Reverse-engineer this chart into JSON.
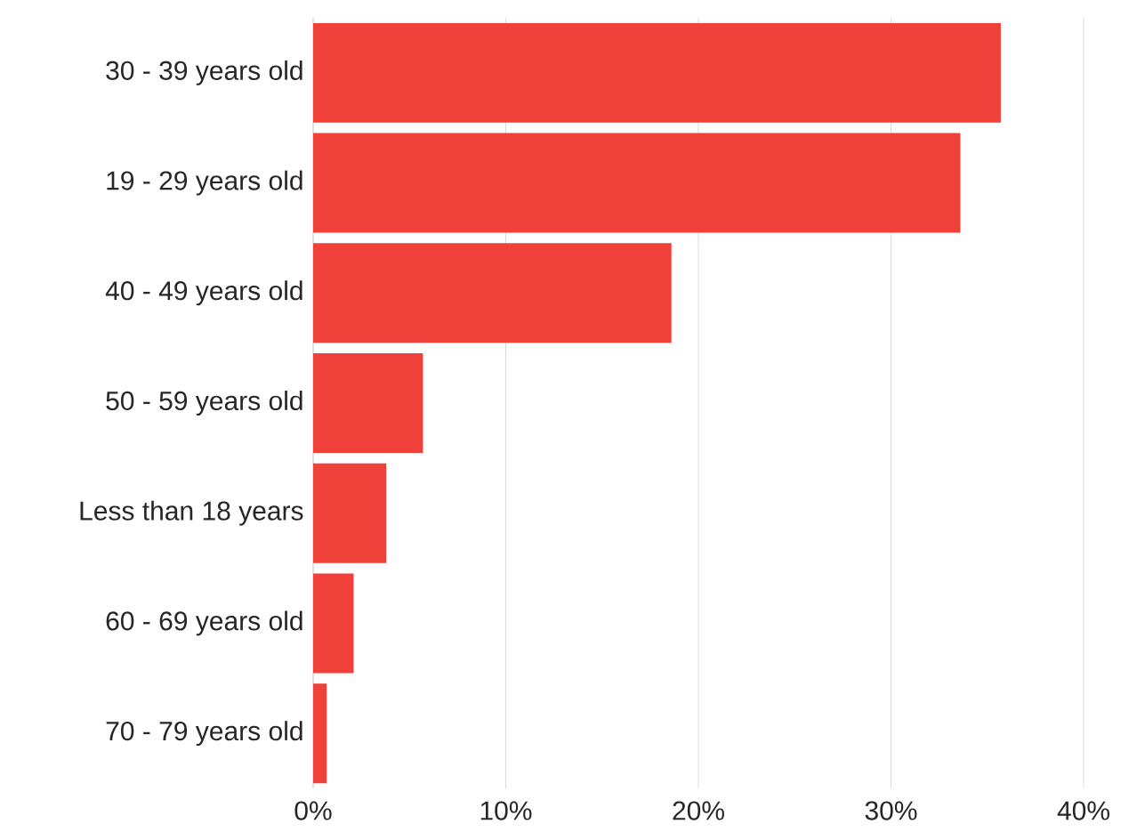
{
  "chart_data": {
    "type": "bar",
    "orientation": "horizontal",
    "categories": [
      "30 - 39 years old",
      "19 - 29 years old",
      "40 - 49 years old",
      "50 - 59 years old",
      "Less than 18 years",
      "60 - 69 years old",
      "70 - 79 years old"
    ],
    "values": [
      35.7,
      33.6,
      18.6,
      5.7,
      3.8,
      2.1,
      0.7
    ],
    "color": "#ef4039",
    "xlim": [
      0,
      40
    ],
    "xticks": [
      {
        "value": 0,
        "label": "0%"
      },
      {
        "value": 10,
        "label": "10%"
      },
      {
        "value": 20,
        "label": "20%"
      },
      {
        "value": 30,
        "label": "30%"
      },
      {
        "value": 40,
        "label": "40%"
      }
    ],
    "grid": "x"
  }
}
